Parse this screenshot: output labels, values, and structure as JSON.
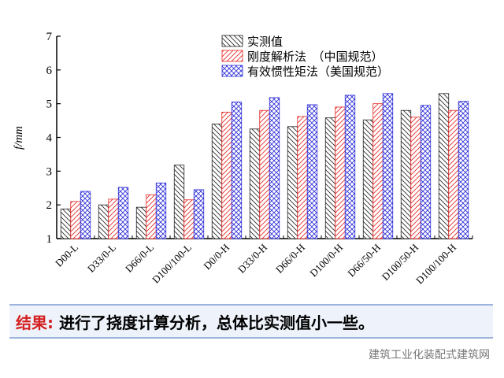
{
  "chart_data": {
    "type": "bar",
    "ylabel": "f/mm",
    "categories": [
      "D00-L",
      "D33/0-L",
      "D66/0-L",
      "D100/100-L",
      "D0/0-H",
      "D33/0-H",
      "D66/0-H",
      "D100/0-H",
      "D66/50-H",
      "D100/50-H",
      "D100/100-H"
    ],
    "series": [
      {
        "name": "实测值",
        "color": "#222222",
        "hatch": "\\",
        "values": [
          1.88,
          2.0,
          1.93,
          3.18,
          4.4,
          4.25,
          4.32,
          4.58,
          4.52,
          4.8,
          5.3
        ]
      },
      {
        "name": "刚度解析法　（中国规范）",
        "color": "#e8231f",
        "hatch": "/",
        "values": [
          2.1,
          2.17,
          2.3,
          2.15,
          4.75,
          4.8,
          4.62,
          4.9,
          5.0,
          4.6,
          4.8
        ]
      },
      {
        "name": "有效惯性矩法（美国规范）",
        "color": "#2b2bd8",
        "hatch": "x",
        "values": [
          2.4,
          2.52,
          2.65,
          2.45,
          5.05,
          5.18,
          4.97,
          5.25,
          5.3,
          4.95,
          5.07
        ]
      }
    ],
    "ylim": [
      1,
      7
    ],
    "yticks": [
      1,
      2,
      3,
      4,
      5,
      6,
      7
    ]
  },
  "conclusion": {
    "label": "结果:",
    "text": "进行了挠度计算分析，总体比实测值小一些。"
  },
  "watermark": "建筑工业化装配式建筑网"
}
